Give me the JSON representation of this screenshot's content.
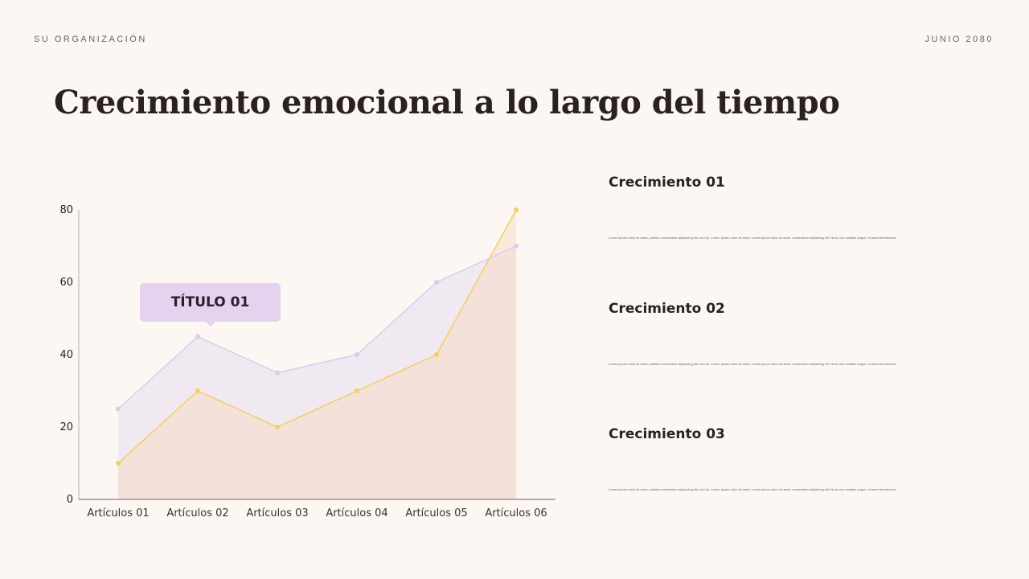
{
  "header": {
    "organization": "SU ORGANIZACIÓN",
    "date": "JUNIO 2080"
  },
  "title": "Crecimiento emocional a lo largo del tiempo",
  "callout": "TÍTULO 01",
  "items": [
    {
      "heading": "Crecimiento 01",
      "text": "Lorem ipsum dolor sit amet, porttitor consectetur adipiscing elit, sed do. Lorem ipsum dolor sit amet. Lorem ipsum dolor sit amet, consectetur adipiscing elit. Nunc non sodales augue, sit amet fermentum."
    },
    {
      "heading": "Crecimiento 02",
      "text": "Lorem ipsum dolor sit amet, porttitor consectetur adipiscing elit, sed do. Lorem ipsum dolor sit amet. Lorem ipsum dolor sit amet, consectetur adipiscing elit. Nunc non sodales augue, sit amet fermentum."
    },
    {
      "heading": "Crecimiento 03",
      "text": "Lorem ipsum dolor sit amet, porttitor consectetur adipiscing elit, sed do. Lorem ipsum dolor sit amet. Lorem ipsum dolor sit amet, consectetur adipiscing elit. Nunc non sodales augue, sit amet fermentum."
    }
  ],
  "chart_data": {
    "type": "area",
    "categories": [
      "Artículos 01",
      "Artículos 02",
      "Artículos 03",
      "Artículos 04",
      "Artículos 05",
      "Artículos 06"
    ],
    "series": [
      {
        "values": [
          25,
          45,
          35,
          40,
          60,
          70
        ],
        "color": "#d9cdee"
      },
      {
        "values": [
          10,
          30,
          20,
          30,
          40,
          80
        ],
        "color": "#f3cf62"
      }
    ],
    "ylim": [
      0,
      80
    ],
    "yticks": [
      0,
      20,
      40,
      60,
      80
    ],
    "grid": false,
    "xlabel": "",
    "ylabel": "",
    "title": ""
  }
}
